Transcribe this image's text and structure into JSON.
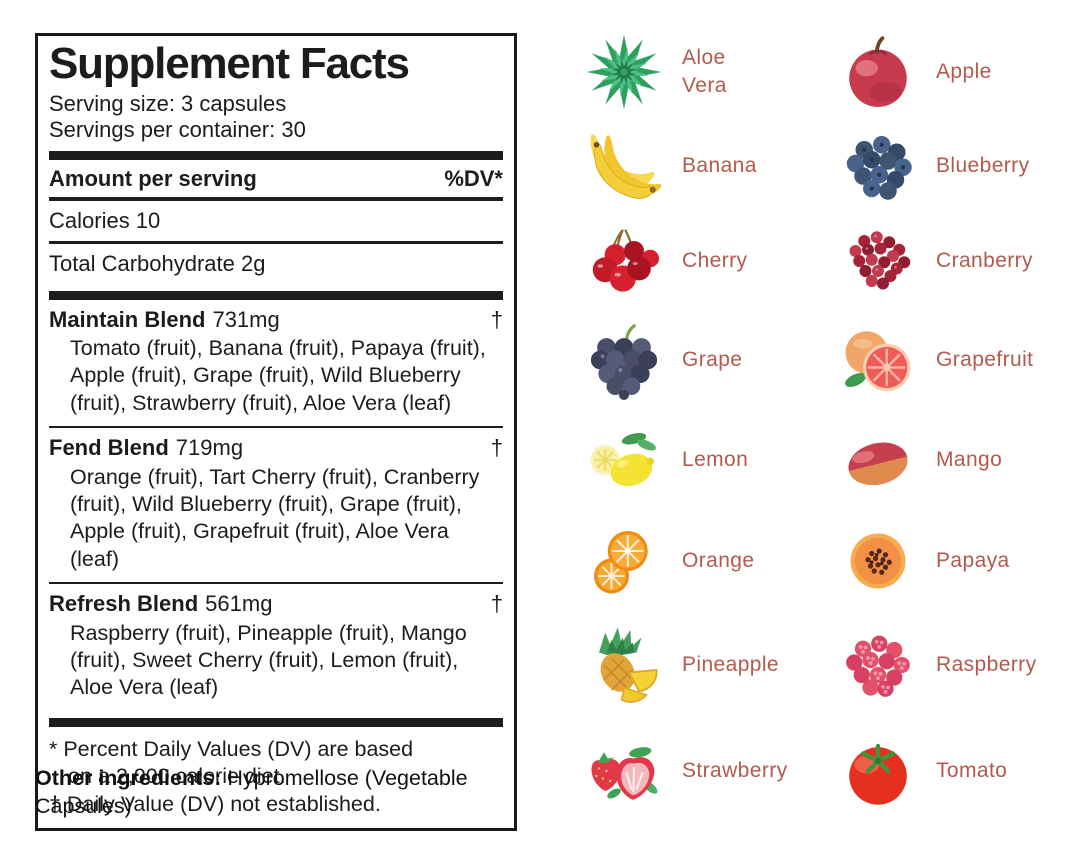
{
  "label": {
    "title": "Supplement Facts",
    "serving_size": "Serving size: 3 capsules",
    "servings_per_container": "Servings per container: 30",
    "amount_per_serving": "Amount per serving",
    "dv_header": "%DV*",
    "calories": "Calories 10",
    "total_carbohydrate": "Total Carbohydrate 2g",
    "blends": [
      {
        "name": "Maintain Blend",
        "amount": "731mg",
        "dv": "†",
        "ingredients": "Tomato (fruit), Banana (fruit), Papaya (fruit), Apple (fruit), Grape (fruit), Wild Blueberry (fruit), Strawberry (fruit), Aloe Vera (leaf)"
      },
      {
        "name": "Fend Blend",
        "amount": "719mg",
        "dv": "†",
        "ingredients": "Orange (fruit), Tart Cherry (fruit), Cranberry (fruit), Wild Blueberry (fruit), Grape (fruit), Apple (fruit), Grapefruit (fruit), Aloe Vera (leaf)"
      },
      {
        "name": "Refresh Blend",
        "amount": "561mg",
        "dv": "†",
        "ingredients": "Raspberry (fruit), Pineapple (fruit), Mango (fruit), Sweet Cherry (fruit), Lemon (fruit), Aloe Vera (leaf)"
      }
    ],
    "footnotes": {
      "line1": "* Percent Daily Values (DV) are based",
      "line2": "on a 2,000 calorie diet.",
      "line3": "† Daily Value (DV) not established."
    },
    "other_ingredients_label": "Other ingredients:",
    "other_ingredients_value": "Hypromellose (Vegetable Capsules)"
  },
  "fruits": [
    {
      "label": "Aloe\nVera",
      "icon": "aloe-vera"
    },
    {
      "label": "Apple",
      "icon": "apple"
    },
    {
      "label": "Banana",
      "icon": "banana"
    },
    {
      "label": "Blueberry",
      "icon": "blueberry"
    },
    {
      "label": "Cherry",
      "icon": "cherry"
    },
    {
      "label": "Cranberry",
      "icon": "cranberry"
    },
    {
      "label": "Grape",
      "icon": "grape"
    },
    {
      "label": "Grapefruit",
      "icon": "grapefruit"
    },
    {
      "label": "Lemon",
      "icon": "lemon"
    },
    {
      "label": "Mango",
      "icon": "mango"
    },
    {
      "label": "Orange",
      "icon": "orange"
    },
    {
      "label": "Papaya",
      "icon": "papaya"
    },
    {
      "label": "Pineapple",
      "icon": "pineapple"
    },
    {
      "label": "Raspberry",
      "icon": "raspberry"
    },
    {
      "label": "Strawberry",
      "icon": "strawberry"
    },
    {
      "label": "Tomato",
      "icon": "tomato"
    }
  ],
  "colors": {
    "fruit_label_text": "#b25a4c",
    "label_rule": "#1d1d1d",
    "background": "#ffffff"
  }
}
